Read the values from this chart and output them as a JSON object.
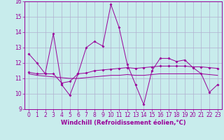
{
  "xlabel": "Windchill (Refroidissement éolien,°C)",
  "background_color": "#c8ecec",
  "grid_color": "#b0b0d0",
  "line_color": "#990099",
  "ylim": [
    9,
    16
  ],
  "xlim": [
    -0.5,
    23.5
  ],
  "yticks": [
    9,
    10,
    11,
    12,
    13,
    14,
    15,
    16
  ],
  "xticks": [
    0,
    1,
    2,
    3,
    4,
    5,
    6,
    7,
    8,
    9,
    10,
    11,
    12,
    13,
    14,
    15,
    16,
    17,
    18,
    19,
    20,
    21,
    22,
    23
  ],
  "series1_x": [
    0,
    1,
    2,
    3,
    4,
    5,
    6,
    7,
    8,
    9,
    10,
    11,
    12,
    13,
    14,
    15,
    16,
    17,
    18,
    19,
    20,
    21,
    22,
    23
  ],
  "series1_y": [
    12.6,
    12.0,
    11.3,
    13.9,
    10.6,
    9.9,
    11.3,
    13.0,
    13.4,
    13.1,
    15.8,
    14.3,
    11.9,
    10.6,
    9.3,
    11.5,
    12.3,
    12.3,
    12.1,
    12.2,
    11.7,
    11.3,
    10.1,
    10.6
  ],
  "series2_x": [
    0,
    1,
    2,
    3,
    4,
    5,
    6,
    7,
    8,
    9,
    10,
    11,
    12,
    13,
    14,
    15,
    16,
    17,
    18,
    19,
    20,
    21,
    22,
    23
  ],
  "series2_y": [
    11.4,
    11.3,
    11.3,
    11.3,
    10.7,
    10.8,
    11.3,
    11.35,
    11.5,
    11.55,
    11.6,
    11.65,
    11.7,
    11.65,
    11.7,
    11.75,
    11.8,
    11.8,
    11.8,
    11.8,
    11.75,
    11.75,
    11.7,
    11.65
  ],
  "series3_x": [
    0,
    1,
    2,
    3,
    4,
    5,
    6,
    7,
    8,
    9,
    10,
    11,
    12,
    13,
    14,
    15,
    16,
    17,
    18,
    19,
    20,
    21,
    22,
    23
  ],
  "series3_y": [
    11.3,
    11.2,
    11.15,
    11.1,
    11.05,
    11.0,
    11.0,
    11.05,
    11.1,
    11.15,
    11.2,
    11.2,
    11.25,
    11.2,
    11.2,
    11.25,
    11.3,
    11.3,
    11.3,
    11.3,
    11.3,
    11.3,
    11.25,
    11.2
  ],
  "ylabel_fontsize": 6,
  "xlabel_fontsize": 6,
  "tick_labelsize": 5.5
}
